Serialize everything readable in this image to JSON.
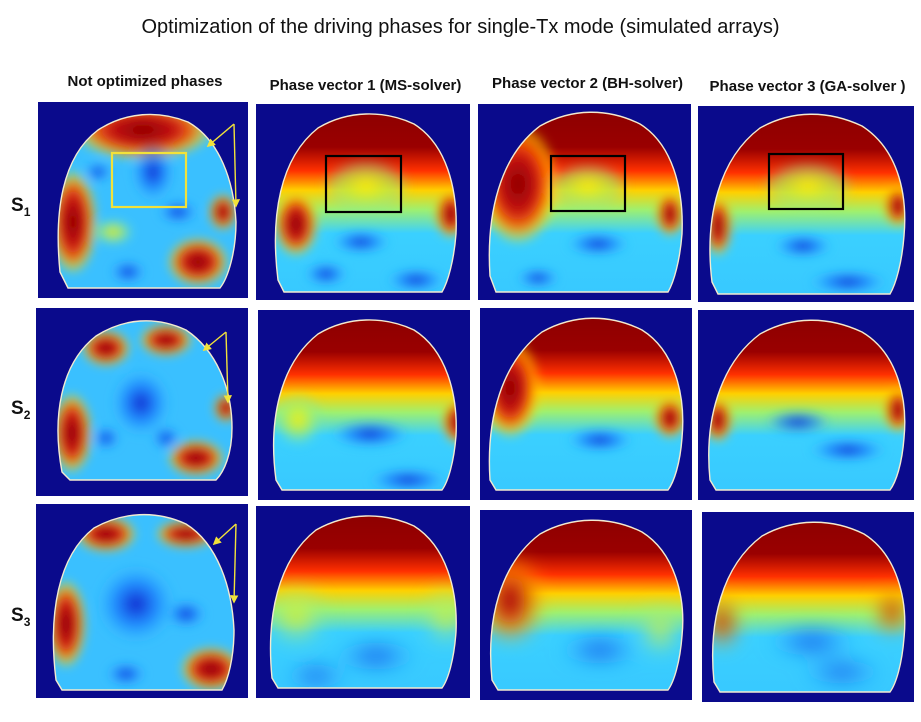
{
  "title": "Optimization of the driving phases  for single-Tx  mode (simulated arrays)",
  "column_headers": [
    "Not optimized phases",
    "Phase vector 1 (MS-solver)",
    "Phase vector 2 (BH-solver)",
    "Phase vector 3 (GA-solver )"
  ],
  "row_labels": [
    {
      "base": "S",
      "sub": "1"
    },
    {
      "base": "S",
      "sub": "2"
    },
    {
      "base": "S",
      "sub": "3"
    }
  ],
  "colors": {
    "background": "#0a0a8c",
    "roi_box_unoptimized": "#f2e23a",
    "roi_box_optimized": "#000000",
    "arrow": "#f2e23a",
    "outline": "#f3ead0"
  },
  "rois": {
    "row": 1,
    "unoptimized_color": "yellow",
    "optimized_color": "black"
  },
  "arrows": {
    "column": 1,
    "rows": [
      1,
      2,
      3
    ]
  }
}
